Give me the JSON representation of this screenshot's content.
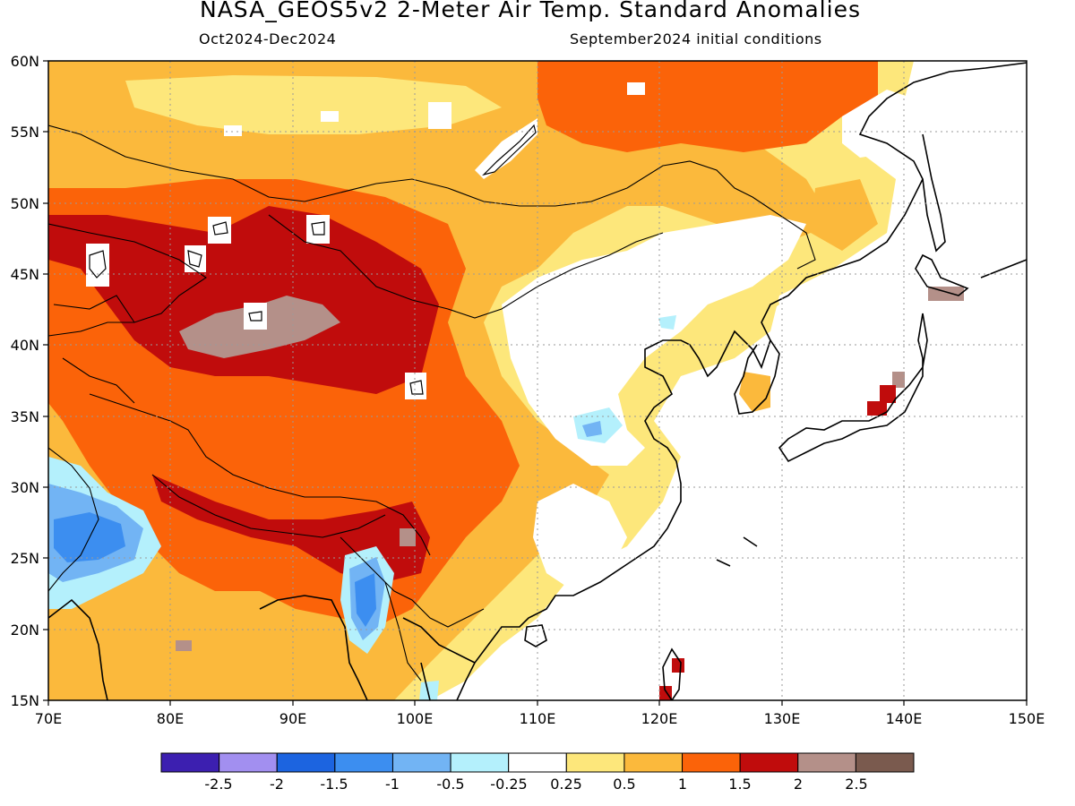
{
  "header": {
    "title": "NASA_GEOS5v2 2-Meter Air Temp. Standard Anomalies",
    "period": "Oct2024-Dec2024",
    "init": "September2024 initial conditions"
  },
  "axes": {
    "lon_labels": [
      "70E",
      "80E",
      "90E",
      "100E",
      "110E",
      "120E",
      "130E",
      "140E",
      "150E"
    ],
    "lat_labels": [
      "60N",
      "55N",
      "50N",
      "45N",
      "40N",
      "35N",
      "30N",
      "25N",
      "20N",
      "15N"
    ]
  },
  "colorbar": {
    "labels": [
      "-2.5",
      "-2",
      "-1.5",
      "-1",
      "-0.5",
      "-0.25",
      "0.25",
      "0.5",
      "1",
      "1.5",
      "2",
      "2.5"
    ],
    "colors": [
      "#3c1fb0",
      "#a28ff0",
      "#1c64e0",
      "#3c8ef0",
      "#72b4f4",
      "#b4f0fc",
      "#ffffff",
      "#fde77b",
      "#fbb93c",
      "#fb6309",
      "#c00c0c",
      "#b49089",
      "#7a5a4e"
    ]
  }
}
